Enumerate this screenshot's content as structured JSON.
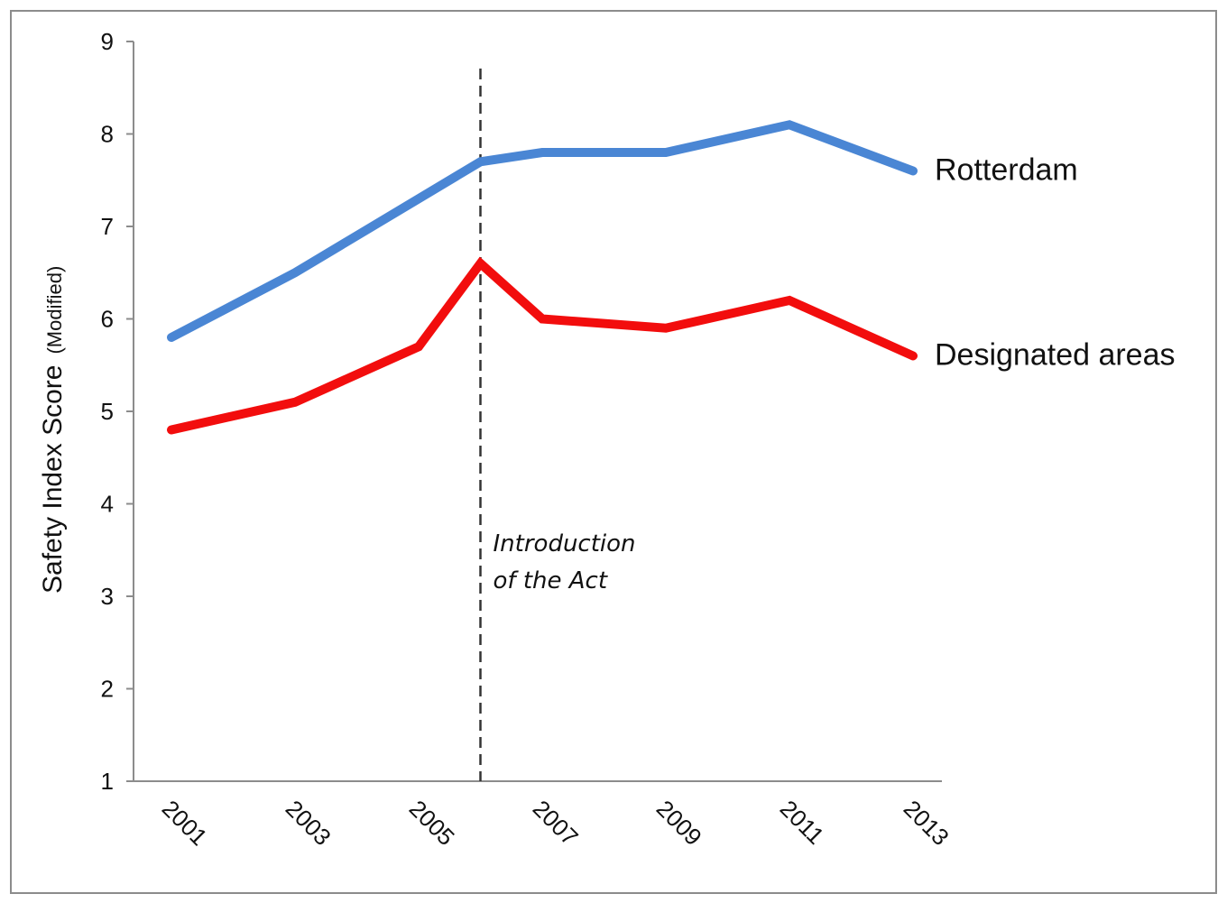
{
  "chart_data": {
    "type": "line",
    "title": "",
    "ylabel": "Safety Index Score",
    "ylabel_note": "(Modified)",
    "xlabel": "",
    "ylim": [
      1,
      9
    ],
    "yticks": [
      "1",
      "2",
      "3",
      "4",
      "5",
      "6",
      "7",
      "8",
      "9"
    ],
    "xlim": [
      2001,
      2013
    ],
    "xticks": [
      "2001",
      "2003",
      "2005",
      "2007",
      "2009",
      "2011",
      "2013"
    ],
    "x": [
      2001,
      2003,
      2005,
      2006,
      2007,
      2009,
      2011,
      2013
    ],
    "series": [
      {
        "name": "Rotterdam",
        "color": "#4a86d4",
        "values": [
          5.8,
          6.5,
          7.3,
          7.7,
          7.8,
          7.8,
          8.1,
          7.6
        ]
      },
      {
        "name": "Designated areas",
        "color": "#f20d0d",
        "values": [
          4.8,
          5.1,
          5.7,
          6.6,
          6.0,
          5.9,
          6.2,
          5.6
        ]
      }
    ],
    "annotations": [
      {
        "x": 2006,
        "line1": "Introduction",
        "line2": "of the Act",
        "style": "dashed vertical line"
      }
    ],
    "grid": false,
    "legend": "labels at right end of each line"
  }
}
